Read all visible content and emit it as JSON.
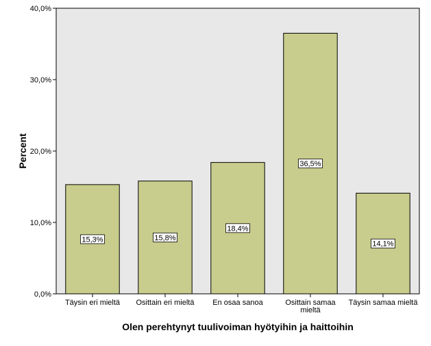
{
  "chart_data": {
    "type": "bar",
    "categories": [
      [
        "Täysin eri mieltä"
      ],
      [
        "Osittain eri mieltä"
      ],
      [
        "En osaa sanoa"
      ],
      [
        "Osittain samaa",
        "mieltä"
      ],
      [
        "Täysin samaa mieltä"
      ]
    ],
    "values": [
      15.3,
      15.8,
      18.4,
      36.5,
      14.1
    ],
    "data_labels": [
      "15,3%",
      "15,8%",
      "18,4%",
      "36,5%",
      "14,1%"
    ],
    "xlabel": "Olen perehtynyt tuulivoiman hyötyihin ja haittoihin",
    "ylabel": "Percent",
    "ylim": [
      0,
      40
    ],
    "yticks": [
      {
        "value": 0,
        "label": "0,0%"
      },
      {
        "value": 10,
        "label": "10,0%"
      },
      {
        "value": 20,
        "label": "20,0%"
      },
      {
        "value": 30,
        "label": "30,0%"
      },
      {
        "value": 40,
        "label": "40,0%"
      }
    ],
    "grid": false,
    "colors": {
      "bar_fill": "#c8cc8c",
      "plot_background": "#e8e8e8",
      "bar_stroke": "#000000"
    }
  }
}
